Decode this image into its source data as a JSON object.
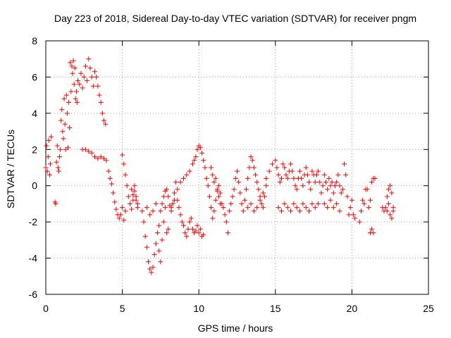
{
  "chart_data": {
    "type": "scatter",
    "title": "Day 223 of 2018, Sidereal Day-to-day VTEC variation (SDTVAR) for receiver pngm",
    "xlabel": "GPS time / hours",
    "ylabel": "SDTVAR / TECUs",
    "xlim": [
      0,
      25
    ],
    "ylim": [
      -6,
      8
    ],
    "xticks": [
      "0",
      "5",
      "10",
      "15",
      "20",
      "25"
    ],
    "yticks": [
      "-6",
      "-4",
      "-2",
      "0",
      "2",
      "4",
      "6",
      "8"
    ],
    "grid": true,
    "marker": "+",
    "color": "#ff0000",
    "series": [
      {
        "name": "SDTVAR",
        "points": [
          [
            0.0,
            1.0
          ],
          [
            0.05,
            2.2
          ],
          [
            0.1,
            0.8
          ],
          [
            0.15,
            1.6
          ],
          [
            0.2,
            2.5
          ],
          [
            0.25,
            0.6
          ],
          [
            0.3,
            1.2
          ],
          [
            0.35,
            2.7
          ],
          [
            0.6,
            -0.9
          ],
          [
            0.65,
            -1.0
          ],
          [
            0.7,
            1.3
          ],
          [
            0.75,
            2.2
          ],
          [
            0.8,
            1.0
          ],
          [
            0.85,
            0.8
          ],
          [
            0.9,
            1.6
          ],
          [
            0.95,
            2.0
          ],
          [
            1.0,
            3.6
          ],
          [
            1.05,
            4.2
          ],
          [
            1.1,
            3.0
          ],
          [
            1.15,
            2.6
          ],
          [
            1.2,
            4.8
          ],
          [
            1.25,
            3.4
          ],
          [
            1.3,
            2.0
          ],
          [
            1.35,
            5.0
          ],
          [
            1.4,
            4.0
          ],
          [
            1.45,
            2.1
          ],
          [
            1.5,
            4.6
          ],
          [
            1.55,
            3.2
          ],
          [
            1.6,
            6.8
          ],
          [
            1.65,
            5.2
          ],
          [
            1.7,
            6.6
          ],
          [
            1.75,
            6.2
          ],
          [
            1.8,
            6.9
          ],
          [
            1.85,
            5.6
          ],
          [
            1.9,
            6.5
          ],
          [
            1.95,
            4.8
          ],
          [
            2.0,
            5.2
          ],
          [
            2.05,
            4.6
          ],
          [
            2.1,
            5.8
          ],
          [
            2.2,
            5.6
          ],
          [
            2.3,
            6.2
          ],
          [
            2.4,
            5.4
          ],
          [
            2.5,
            6.0
          ],
          [
            2.6,
            6.6
          ],
          [
            2.7,
            5.8
          ],
          [
            2.8,
            7.0
          ],
          [
            2.9,
            6.5
          ],
          [
            3.0,
            6.0
          ],
          [
            3.1,
            5.5
          ],
          [
            3.2,
            6.3
          ],
          [
            3.3,
            6.0
          ],
          [
            3.4,
            5.5
          ],
          [
            3.5,
            5.0
          ],
          [
            3.6,
            4.6
          ],
          [
            3.7,
            4.0
          ],
          [
            3.8,
            3.6
          ],
          [
            3.9,
            3.4
          ],
          [
            2.4,
            2.0
          ],
          [
            2.6,
            2.0
          ],
          [
            2.8,
            1.9
          ],
          [
            3.0,
            1.8
          ],
          [
            3.2,
            1.6
          ],
          [
            3.4,
            1.5
          ],
          [
            3.6,
            1.6
          ],
          [
            3.8,
            1.5
          ],
          [
            3.95,
            1.4
          ],
          [
            4.1,
            0.8
          ],
          [
            4.2,
            0.4
          ],
          [
            4.3,
            0.1
          ],
          [
            4.4,
            -0.4
          ],
          [
            4.5,
            -0.9
          ],
          [
            4.6,
            -1.3
          ],
          [
            4.7,
            -1.6
          ],
          [
            4.8,
            -1.8
          ],
          [
            4.9,
            -1.6
          ],
          [
            5.0,
            -1.2
          ],
          [
            5.1,
            -1.9
          ],
          [
            5.2,
            -1.4
          ],
          [
            5.0,
            1.7
          ],
          [
            5.1,
            1.2
          ],
          [
            5.2,
            0.6
          ],
          [
            5.3,
            0.0
          ],
          [
            5.4,
            -0.6
          ],
          [
            5.5,
            -1.0
          ],
          [
            5.6,
            -1.3
          ],
          [
            5.7,
            -0.8
          ],
          [
            5.8,
            -0.3
          ],
          [
            5.9,
            -0.8
          ],
          [
            6.0,
            -1.2
          ],
          [
            5.6,
            -0.2
          ],
          [
            5.7,
            -0.5
          ],
          [
            5.8,
            0.0
          ],
          [
            5.9,
            -0.6
          ],
          [
            6.0,
            -1.0
          ],
          [
            6.3,
            -1.4
          ],
          [
            6.4,
            -2.0
          ],
          [
            6.5,
            -2.8
          ],
          [
            6.6,
            -3.4
          ],
          [
            6.7,
            -4.2
          ],
          [
            6.8,
            -4.6
          ],
          [
            6.9,
            -4.8
          ],
          [
            7.0,
            -4.5
          ],
          [
            7.1,
            -3.8
          ],
          [
            7.2,
            -3.2
          ],
          [
            7.3,
            -2.6
          ],
          [
            7.4,
            -2.2
          ],
          [
            7.5,
            -1.4
          ],
          [
            7.6,
            -1.0
          ],
          [
            7.7,
            -0.6
          ],
          [
            7.8,
            -0.3
          ],
          [
            7.9,
            -0.2
          ],
          [
            8.0,
            -0.6
          ],
          [
            8.1,
            -1.1
          ],
          [
            8.2,
            -1.4
          ],
          [
            8.3,
            -1.0
          ],
          [
            8.4,
            -0.4
          ],
          [
            8.5,
            0.2
          ],
          [
            8.6,
            -0.8
          ],
          [
            8.7,
            -1.2
          ],
          [
            8.8,
            -1.6
          ],
          [
            8.9,
            -2.0
          ],
          [
            9.0,
            -2.2
          ],
          [
            9.1,
            -2.6
          ],
          [
            9.2,
            -2.8
          ],
          [
            9.3,
            -2.4
          ],
          [
            9.4,
            -2.0
          ],
          [
            9.5,
            -1.8
          ],
          [
            9.6,
            -2.4
          ],
          [
            9.7,
            -2.6
          ],
          [
            9.8,
            -2.5
          ],
          [
            9.9,
            -2.2
          ],
          [
            10.0,
            -2.6
          ],
          [
            10.1,
            -2.4
          ],
          [
            10.2,
            -2.8
          ],
          [
            10.3,
            -2.7
          ],
          [
            6.6,
            -1.2
          ],
          [
            6.8,
            -1.6
          ],
          [
            7.0,
            -1.4
          ],
          [
            7.2,
            -1.0
          ],
          [
            7.4,
            -3.6
          ],
          [
            7.5,
            -4.2
          ],
          [
            7.6,
            -3.0
          ],
          [
            7.7,
            -2.0
          ],
          [
            7.8,
            -1.2
          ],
          [
            7.9,
            -2.6
          ],
          [
            8.0,
            -2.4
          ],
          [
            8.2,
            -1.2
          ],
          [
            8.4,
            -0.8
          ],
          [
            8.6,
            -0.2
          ],
          [
            8.8,
            0.2
          ],
          [
            9.0,
            0.4
          ],
          [
            9.2,
            0.6
          ],
          [
            9.4,
            0.8
          ],
          [
            9.6,
            1.2
          ],
          [
            9.7,
            1.4
          ],
          [
            9.8,
            1.6
          ],
          [
            9.9,
            2.0
          ],
          [
            10.0,
            2.2
          ],
          [
            10.1,
            2.1
          ],
          [
            10.2,
            1.8
          ],
          [
            10.3,
            1.4
          ],
          [
            10.4,
            1.0
          ],
          [
            10.5,
            0.4
          ],
          [
            10.6,
            0.0
          ],
          [
            10.7,
            -0.6
          ],
          [
            10.8,
            -1.2
          ],
          [
            10.9,
            -1.8
          ],
          [
            11.0,
            -1.4
          ],
          [
            11.1,
            -0.8
          ],
          [
            11.2,
            -0.3
          ],
          [
            11.3,
            -0.6
          ],
          [
            11.4,
            -1.0
          ],
          [
            10.8,
            1.0
          ],
          [
            10.9,
            0.6
          ],
          [
            11.0,
            0.2
          ],
          [
            11.1,
            0.4
          ],
          [
            11.2,
            -0.2
          ],
          [
            11.3,
            0.0
          ],
          [
            11.4,
            -0.4
          ],
          [
            11.5,
            -1.0
          ],
          [
            11.6,
            -1.2
          ],
          [
            11.7,
            -1.6
          ],
          [
            11.8,
            -2.0
          ],
          [
            11.9,
            -2.6
          ],
          [
            12.0,
            -1.4
          ],
          [
            12.1,
            -1.0
          ],
          [
            12.2,
            -0.6
          ],
          [
            12.3,
            -0.2
          ],
          [
            12.4,
            0.4
          ],
          [
            12.5,
            0.8
          ],
          [
            12.6,
            0.2
          ],
          [
            12.7,
            -0.4
          ],
          [
            12.8,
            -1.0
          ],
          [
            12.9,
            -1.4
          ],
          [
            13.0,
            -0.8
          ],
          [
            13.1,
            -0.2
          ],
          [
            13.2,
            0.4
          ],
          [
            13.3,
            1.0
          ],
          [
            13.4,
            1.6
          ],
          [
            13.5,
            1.4
          ],
          [
            13.6,
            1.0
          ],
          [
            13.7,
            0.6
          ],
          [
            13.8,
            0.2
          ],
          [
            13.9,
            -0.2
          ],
          [
            14.0,
            -0.6
          ],
          [
            14.1,
            -1.0
          ],
          [
            14.2,
            -1.2
          ],
          [
            14.3,
            -0.6
          ],
          [
            14.4,
            0.0
          ],
          [
            13.2,
            -1.2
          ],
          [
            13.4,
            -1.0
          ],
          [
            13.6,
            -1.4
          ],
          [
            13.8,
            -1.2
          ],
          [
            14.0,
            -0.8
          ],
          [
            14.2,
            -0.4
          ],
          [
            14.4,
            0.4
          ],
          [
            14.6,
            0.8
          ],
          [
            14.8,
            1.2
          ],
          [
            15.0,
            1.4
          ],
          [
            15.1,
            1.0
          ],
          [
            15.2,
            0.6
          ],
          [
            15.3,
            0.2
          ],
          [
            15.4,
            0.4
          ],
          [
            15.5,
            1.2
          ],
          [
            15.6,
            1.0
          ],
          [
            15.7,
            0.6
          ],
          [
            15.8,
            0.4
          ],
          [
            15.9,
            0.8
          ],
          [
            16.0,
            1.2
          ],
          [
            16.1,
            0.8
          ],
          [
            16.2,
            0.4
          ],
          [
            16.3,
            0.0
          ],
          [
            16.4,
            -0.2
          ],
          [
            16.5,
            0.4
          ],
          [
            16.6,
            0.8
          ],
          [
            16.7,
            0.4
          ],
          [
            16.8,
            0.0
          ],
          [
            16.9,
            0.6
          ],
          [
            17.0,
            1.0
          ],
          [
            17.1,
            0.6
          ],
          [
            17.2,
            0.2
          ],
          [
            17.3,
            -0.2
          ],
          [
            15.2,
            -1.2
          ],
          [
            15.4,
            -1.4
          ],
          [
            15.6,
            -1.0
          ],
          [
            15.8,
            -1.2
          ],
          [
            16.0,
            -1.4
          ],
          [
            16.2,
            -1.0
          ],
          [
            16.4,
            -1.2
          ],
          [
            16.6,
            -1.4
          ],
          [
            16.8,
            -1.0
          ],
          [
            17.0,
            -1.2
          ],
          [
            17.2,
            -1.4
          ],
          [
            17.4,
            -1.0
          ],
          [
            17.6,
            -1.2
          ],
          [
            17.8,
            -1.0
          ],
          [
            17.4,
            0.8
          ],
          [
            17.5,
            0.6
          ],
          [
            17.6,
            0.2
          ],
          [
            17.7,
            0.6
          ],
          [
            17.8,
            0.8
          ],
          [
            17.9,
            0.2
          ],
          [
            18.0,
            -0.4
          ],
          [
            18.1,
            0.0
          ],
          [
            18.2,
            0.6
          ],
          [
            18.3,
            0.2
          ],
          [
            18.4,
            -0.2
          ],
          [
            18.5,
            0.4
          ],
          [
            18.6,
            0.0
          ],
          [
            18.7,
            0.2
          ],
          [
            18.8,
            -0.4
          ],
          [
            18.9,
            0.0
          ],
          [
            19.0,
            0.2
          ],
          [
            19.1,
            0.6
          ],
          [
            19.2,
            0.0
          ],
          [
            19.3,
            -0.4
          ],
          [
            18.2,
            -1.0
          ],
          [
            18.4,
            -1.2
          ],
          [
            18.6,
            -0.8
          ],
          [
            18.8,
            -1.2
          ],
          [
            19.0,
            -1.0
          ],
          [
            19.2,
            -1.4
          ],
          [
            19.4,
            -0.2
          ],
          [
            19.5,
            1.2
          ],
          [
            19.6,
            0.6
          ],
          [
            19.7,
            -0.6
          ],
          [
            19.8,
            -1.6
          ],
          [
            19.9,
            -1.2
          ],
          [
            20.0,
            -0.8
          ],
          [
            20.1,
            -1.6
          ],
          [
            20.2,
            -1.8
          ],
          [
            20.5,
            -2.0
          ],
          [
            20.6,
            -1.4
          ],
          [
            20.7,
            -0.8
          ],
          [
            20.8,
            -1.0
          ],
          [
            20.9,
            -0.2
          ],
          [
            21.0,
            -0.2
          ],
          [
            21.1,
            -1.2
          ],
          [
            21.2,
            -0.8
          ],
          [
            21.3,
            0.2
          ],
          [
            21.4,
            0.4
          ],
          [
            21.5,
            0.4
          ],
          [
            21.2,
            -2.6
          ],
          [
            21.3,
            -2.4
          ],
          [
            21.4,
            -2.6
          ],
          [
            22.0,
            -1.2
          ],
          [
            22.1,
            -1.4
          ],
          [
            22.2,
            -1.2
          ],
          [
            22.3,
            -1.4
          ],
          [
            22.4,
            -1.0
          ],
          [
            22.5,
            -1.6
          ],
          [
            22.6,
            -1.8
          ],
          [
            22.7,
            -1.2
          ],
          [
            22.3,
            -0.6
          ],
          [
            22.4,
            -0.2
          ],
          [
            22.5,
            0.0
          ],
          [
            22.6,
            -0.4
          ],
          [
            22.7,
            -1.4
          ]
        ]
      }
    ]
  }
}
